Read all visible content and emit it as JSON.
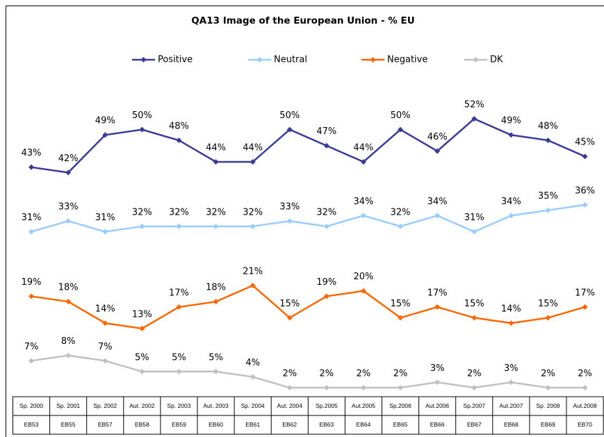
{
  "chart_data": {
    "type": "line",
    "title": "QA13 Image of the European Union - % EU",
    "categories": [
      "Sp. 2000",
      "Sp. 2001",
      "Sp. 2002",
      "Aut. 2002",
      "Sp. 2003",
      "Aut. 2003",
      "Sp. 2004",
      "Aut. 2004",
      "Sp.2005",
      "Aut.2005",
      "Sp.2006",
      "Aut.2006",
      "Sp.2007",
      "Aut.2007",
      "Sp. 2008",
      "Aut.2008"
    ],
    "wave_codes": [
      "EB53",
      "EB55",
      "EB57",
      "EB58",
      "EB59",
      "EB60",
      "EB61",
      "EB62",
      "EB63",
      "EB64",
      "EB65",
      "EB66",
      "EB67",
      "EB68",
      "EB69",
      "EB70"
    ],
    "legend": "top",
    "series": [
      {
        "name": "Positive",
        "color": "#3a3a99",
        "values": [
          43,
          42,
          49,
          50,
          48,
          44,
          44,
          50,
          47,
          44,
          50,
          46,
          52,
          49,
          48,
          45
        ],
        "value_labels": [
          "43%",
          "42%",
          "49%",
          "50%",
          "48%",
          "44%",
          "44%",
          "50%",
          "47%",
          "44%",
          "50%",
          "46%",
          "52%",
          "49%",
          "48%",
          "45%"
        ]
      },
      {
        "name": "Neutral",
        "color": "#99ccff",
        "values": [
          31,
          33,
          31,
          32,
          32,
          32,
          32,
          33,
          32,
          34,
          32,
          34,
          31,
          34,
          35,
          36
        ],
        "value_labels": [
          "31%",
          "33%",
          "31%",
          "32%",
          "32%",
          "32%",
          "32%",
          "33%",
          "32%",
          "34%",
          "32%",
          "34%",
          "31%",
          "34%",
          "35%",
          "36%"
        ]
      },
      {
        "name": "Negative",
        "color": "#ff6600",
        "values": [
          19,
          18,
          14,
          13,
          17,
          18,
          21,
          15,
          19,
          20,
          15,
          17,
          15,
          14,
          15,
          17
        ],
        "value_labels": [
          "19%",
          "18%",
          "14%",
          "13%",
          "17%",
          "18%",
          "21%",
          "15%",
          "19%",
          "20%",
          "15%",
          "17%",
          "15%",
          "14%",
          "15%",
          "17%"
        ]
      },
      {
        "name": "DK",
        "color": "#c0c0c0",
        "values": [
          7,
          8,
          7,
          5,
          5,
          5,
          4,
          2,
          2,
          2,
          2,
          3,
          2,
          3,
          2,
          2
        ],
        "value_labels": [
          "7%",
          "8%",
          "7%",
          "5%",
          "5%",
          "5%",
          "4%",
          "2%",
          "2%",
          "2%",
          "2%",
          "3%",
          "2%",
          "3%",
          "2%",
          "2%"
        ]
      }
    ]
  }
}
